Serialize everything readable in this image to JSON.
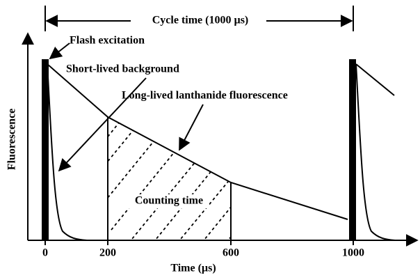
{
  "labels": {
    "cycle_time": "Cycle time (1000 µs)",
    "flash": "Flash excitation",
    "short": "Short-lived background",
    "long": "Long-lived lanthanide fluorescence",
    "counting": "Counting time",
    "y_axis": "Fluorescence",
    "x_axis": "Time (µs)"
  },
  "ticks": [
    "0",
    "200",
    "600",
    "1000"
  ]
}
